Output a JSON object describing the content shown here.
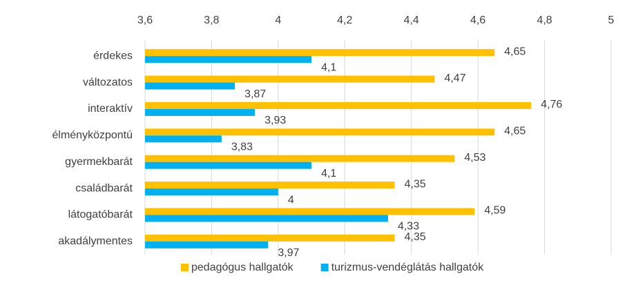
{
  "chart_data": {
    "type": "bar",
    "orientation": "horizontal",
    "categories": [
      "érdekes",
      "változatos",
      "interaktív",
      "élményközpontú",
      "gyermekbarát",
      "családbarát",
      "látogatóbarát",
      "akadálymentes"
    ],
    "series": [
      {
        "name": "pedagógus hallgatók",
        "color": "#ffc000",
        "values": [
          4.65,
          4.47,
          4.76,
          4.65,
          4.53,
          4.35,
          4.59,
          4.35
        ],
        "value_labels": [
          "4,65",
          "4,47",
          "4,76",
          "4,65",
          "4,53",
          "4,35",
          "4,59",
          "4,35"
        ]
      },
      {
        "name": "turizmus-vendéglátás hallgatók",
        "color": "#00b0f0",
        "values": [
          4.1,
          3.87,
          3.93,
          3.83,
          4.1,
          4,
          4.33,
          3.97
        ],
        "value_labels": [
          "4,1",
          "3,87",
          "3,93",
          "3,83",
          "4,1",
          "4",
          "4,33",
          "3,97"
        ]
      }
    ],
    "xlim": [
      3.6,
      5
    ],
    "xticks": [
      {
        "value": 3.6,
        "label": "3,6"
      },
      {
        "value": 3.8,
        "label": "3,8"
      },
      4,
      {
        "value": 4.2,
        "label": "4,2"
      },
      {
        "value": 4.4,
        "label": "4,4"
      },
      {
        "value": 4.6,
        "label": "4,6"
      },
      {
        "value": 4.8,
        "label": "4,8"
      },
      5
    ],
    "grid": true,
    "legend": "bottom"
  }
}
